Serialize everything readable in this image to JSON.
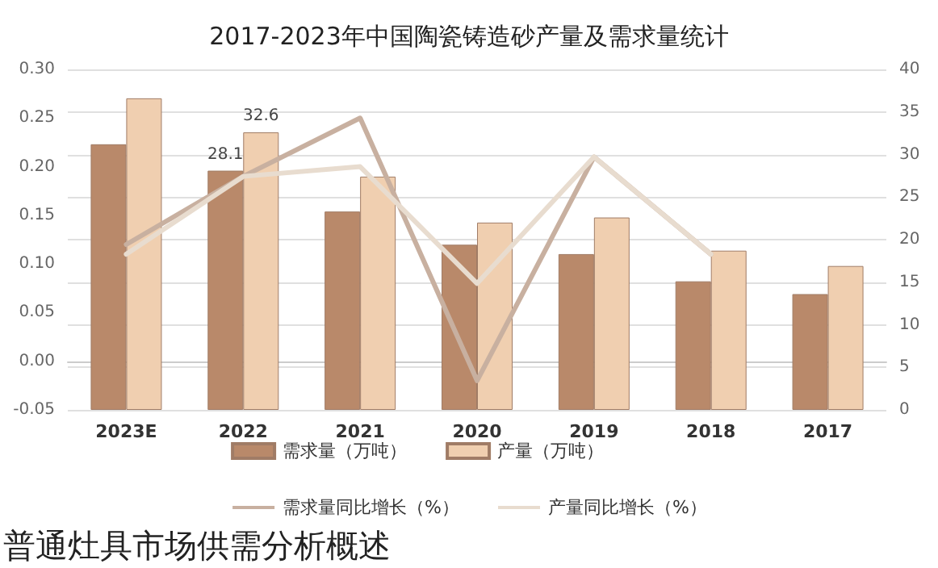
{
  "chart_data": {
    "type": "bar",
    "title": "2017-2023年中国陶瓷铸造砂产量及需求量统计",
    "categories": [
      "2023E",
      "2022",
      "2021",
      "2020",
      "2019",
      "2018",
      "2017"
    ],
    "series": [
      {
        "name": "需求量（万吨）",
        "axis": "y2",
        "color": "#b9896a",
        "values": [
          31.2,
          28.1,
          23.3,
          19.4,
          18.3,
          15.1,
          13.6
        ],
        "value_labels": [
          null,
          "28.1",
          null,
          null,
          null,
          null,
          null
        ]
      },
      {
        "name": "产量（万吨）",
        "axis": "y2",
        "color": "#f0cfb0",
        "values": [
          36.6,
          32.6,
          27.4,
          22.0,
          22.6,
          18.7,
          16.9
        ],
        "value_labels": [
          null,
          "32.6",
          null,
          null,
          null,
          null,
          null
        ]
      },
      {
        "name": "需求量同比增长（%）",
        "type": "line",
        "axis": "y",
        "color": "#c8b0a0",
        "values": [
          0.12,
          0.19,
          0.25,
          -0.02,
          0.21,
          0.11,
          null
        ]
      },
      {
        "name": "产量同比增长（%）",
        "type": "line",
        "axis": "y",
        "color": "#e8dccf",
        "values": [
          0.11,
          0.19,
          0.2,
          0.08,
          0.21,
          0.11,
          null
        ]
      }
    ],
    "ylim": [
      -0.05,
      0.3
    ],
    "yticks": [
      {
        "value": -0.05,
        "label": "-0.05"
      },
      {
        "value": 0,
        "label": "0.00"
      },
      {
        "value": 0.05,
        "label": "0.05"
      },
      {
        "value": 0.1,
        "label": "0.10"
      },
      {
        "value": 0.15,
        "label": "0.15"
      },
      {
        "value": 0.2,
        "label": "0.20"
      },
      {
        "value": 0.25,
        "label": "0.25"
      },
      {
        "value": 0.3,
        "label": "0.30"
      }
    ],
    "y2lim": [
      0,
      40
    ],
    "y2ticks": [
      0,
      5,
      10,
      15,
      20,
      25,
      30,
      35,
      40
    ],
    "grid": "y",
    "legend": "bottom",
    "marker": "none",
    "line_style": "solid",
    "annotations": [
      "普通灶具市场供需分析概述"
    ]
  }
}
